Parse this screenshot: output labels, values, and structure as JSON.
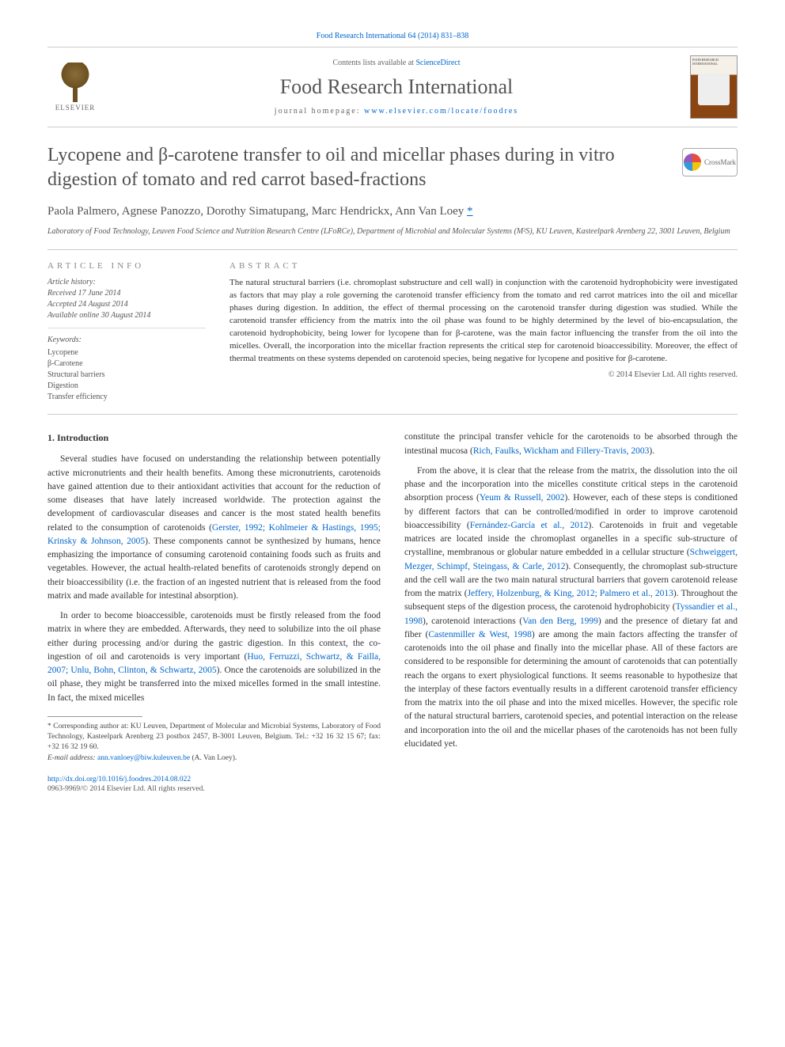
{
  "colors": {
    "link": "#0066cc",
    "text": "#333333",
    "muted": "#666666",
    "border": "#cccccc",
    "title": "#505050"
  },
  "topLink": {
    "label": "Food Research International 64 (2014) 831–838",
    "href": "#"
  },
  "header": {
    "contentsPrefix": "Contents lists available at ",
    "contentsLinkLabel": "ScienceDirect",
    "journalName": "Food Research International",
    "homepagePrefix": "journal homepage: ",
    "homepageLinkLabel": "www.elsevier.com/locate/foodres",
    "elsevierLabel": "ELSEVIER",
    "coverTopText": "FOOD RESEARCH INTERNATIONAL"
  },
  "article": {
    "title": "Lycopene and β-carotene transfer to oil and micellar phases during in vitro digestion of tomato and red carrot based-fractions",
    "crossmarkLabel": "CrossMark",
    "authors": "Paola Palmero, Agnese Panozzo, Dorothy Simatupang, Marc Hendrickx, Ann Van Loey ",
    "corrMark": "*",
    "affiliation": "Laboratory of Food Technology, Leuven Food Science and Nutrition Research Centre (LFoRCe), Department of Microbial and Molecular Systems (M²S), KU Leuven, Kasteelpark Arenberg 22, 3001 Leuven, Belgium"
  },
  "info": {
    "heading": "ARTICLE INFO",
    "historyLabel": "Article history:",
    "received": "Received 17 June 2014",
    "accepted": "Accepted 24 August 2014",
    "online": "Available online 30 August 2014",
    "keywordsLabel": "Keywords:",
    "keywords": [
      "Lycopene",
      "β-Carotene",
      "Structural barriers",
      "Digestion",
      "Transfer efficiency"
    ]
  },
  "abstract": {
    "heading": "ABSTRACT",
    "text": "The natural structural barriers (i.e. chromoplast substructure and cell wall) in conjunction with the carotenoid hydrophobicity were investigated as factors that may play a role governing the carotenoid transfer efficiency from the tomato and red carrot matrices into the oil and micellar phases during digestion. In addition, the effect of thermal processing on the carotenoid transfer during digestion was studied. While the carotenoid transfer efficiency from the matrix into the oil phase was found to be highly determined by the level of bio-encapsulation, the carotenoid hydrophobicity, being lower for lycopene than for β-carotene, was the main factor influencing the transfer from the oil into the micelles. Overall, the incorporation into the micellar fraction represents the critical step for carotenoid bioaccessibility. Moreover, the effect of thermal treatments on these systems depended on carotenoid species, being negative for lycopene and positive for β-carotene.",
    "copyright": "© 2014 Elsevier Ltd. All rights reserved."
  },
  "body": {
    "introHeading": "1. Introduction",
    "leftParas": [
      {
        "pre": "Several studies have focused on understanding the relationship between potentially active micronutrients and their health benefits. Among these micronutrients, carotenoids have gained attention due to their antioxidant activities that account for the reduction of some diseases that have lately increased worldwide. The protection against the development of cardiovascular diseases and cancer is the most stated health benefits related to the consumption of carotenoids (",
        "ref": "Gerster, 1992; Kohlmeier & Hastings, 1995; Krinsky & Johnson, 2005",
        "post": "). These components cannot be synthesized by humans, hence emphasizing the importance of consuming carotenoid containing foods such as fruits and vegetables. However, the actual health-related benefits of carotenoids strongly depend on their bioaccessibility (i.e. the fraction of an ingested nutrient that is released from the food matrix and made available for intestinal absorption)."
      },
      {
        "pre": "In order to become bioaccessible, carotenoids must be firstly released from the food matrix in where they are embedded. Afterwards, they need to solubilize into the oil phase either during processing and/or during the gastric digestion. In this context, the co-ingestion of oil and carotenoids is very important (",
        "ref": "Huo, Ferruzzi, Schwartz, & Failla, 2007; Unlu, Bohn, Clinton, & Schwartz, 2005",
        "post": "). Once the carotenoids are solubilized in the oil phase, they might be transferred into the mixed micelles formed in the small intestine. In fact, the mixed micelles"
      }
    ],
    "rightParas": [
      {
        "pre": "constitute the principal transfer vehicle for the carotenoids to be absorbed through the intestinal mucosa (",
        "ref": "Rich, Faulks, Wickham and Fillery-Travis, 2003",
        "post": ")."
      },
      {
        "pre": "From the above, it is clear that the release from the matrix, the dissolution into the oil phase and the incorporation into the micelles constitute critical steps in the carotenoid absorption process (",
        "ref": "Yeum & Russell, 2002",
        "post": "). However, each of these steps is conditioned by different factors that can be controlled/modified in order to improve carotenoid bioaccessibility ("
      }
    ],
    "rightRef2": "Fernández-García et al., 2012",
    "rightCont2": "). Carotenoids in fruit and vegetable matrices are located inside the chromoplast organelles in a specific sub-structure of crystalline, membranous or globular nature embedded in a cellular structure (",
    "rightRef3": "Schweiggert, Mezger, Schimpf, Steingass, & Carle, 2012",
    "rightCont3": "). Consequently, the chromoplast sub-structure and the cell wall are the two main natural structural barriers that govern carotenoid release from the matrix (",
    "rightRef4": "Jeffery, Holzenburg, & King, 2012; Palmero et al., 2013",
    "rightCont4": "). Throughout the subsequent steps of the digestion process, the carotenoid hydrophobicity (",
    "rightRef5": "Tyssandier et al., 1998",
    "rightCont5": "), carotenoid interactions (",
    "rightRef6": "Van den Berg, 1999",
    "rightCont6": ") and the presence of dietary fat and fiber (",
    "rightRef7": "Castenmiller & West, 1998",
    "rightCont7": ") are among the main factors affecting the transfer of carotenoids into the oil phase and finally into the micellar phase. All of these factors are considered to be responsible for determining the amount of carotenoids that can potentially reach the organs to exert physiological functions. It seems reasonable to hypothesize that the interplay of these factors eventually results in a different carotenoid transfer efficiency from the matrix into the oil phase and into the mixed micelles. However, the specific role of the natural structural barriers, carotenoid species, and potential interaction on the release and incorporation into the oil and the micellar phases of the carotenoids has not been fully elucidated yet."
  },
  "footnote": {
    "corrLabel": "* Corresponding author at: KU Leuven, Department of Molecular and Microbial Systems, Laboratory of Food Technology, Kasteelpark Arenberg 23 postbox 2457, B-3001 Leuven, Belgium. Tel.: +32 16 32 15 67; fax: +32 16 32 19 60.",
    "emailLabel": "E-mail address: ",
    "email": "ann.vanloey@biw.kuleuven.be",
    "emailSuffix": " (A. Van Loey)."
  },
  "footer": {
    "doi": "http://dx.doi.org/10.1016/j.foodres.2014.08.022",
    "issn": "0963-9969/© 2014 Elsevier Ltd. All rights reserved."
  }
}
